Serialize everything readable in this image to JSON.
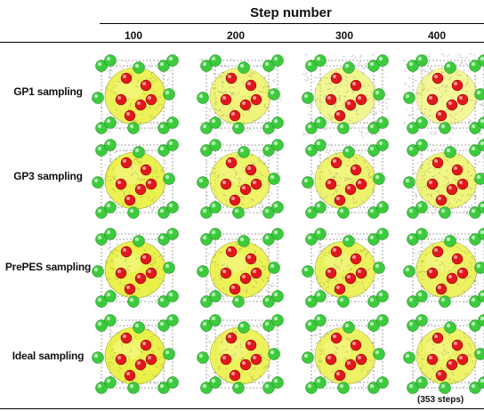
{
  "header": {
    "title": "Step number"
  },
  "columns": [
    "100",
    "200",
    "300",
    "400"
  ],
  "rows": [
    {
      "label": "GP1 sampling",
      "density": [
        0.55,
        0.8,
        0.95,
        1.0
      ],
      "yellow": [
        0.85,
        0.55,
        0.35,
        0.3
      ]
    },
    {
      "label": "GP3 sampling",
      "density": [
        0.35,
        0.45,
        0.5,
        0.6
      ],
      "yellow": [
        0.9,
        0.7,
        0.65,
        0.55
      ]
    },
    {
      "label": "PrePES sampling",
      "density": [
        0.3,
        0.4,
        0.45,
        0.5
      ],
      "yellow": [
        0.95,
        0.85,
        0.8,
        0.75
      ]
    },
    {
      "label": "Ideal sampling",
      "density": [
        0.3,
        0.45,
        0.5,
        0.55
      ],
      "yellow": [
        0.95,
        0.8,
        0.75,
        0.7
      ]
    }
  ],
  "footnote": "(353 steps)",
  "colors": {
    "green_atom": "#3ccb3c",
    "red_atom": "#e0181c",
    "yellow_surface": "#e9f03c",
    "mesh": "#555555"
  }
}
